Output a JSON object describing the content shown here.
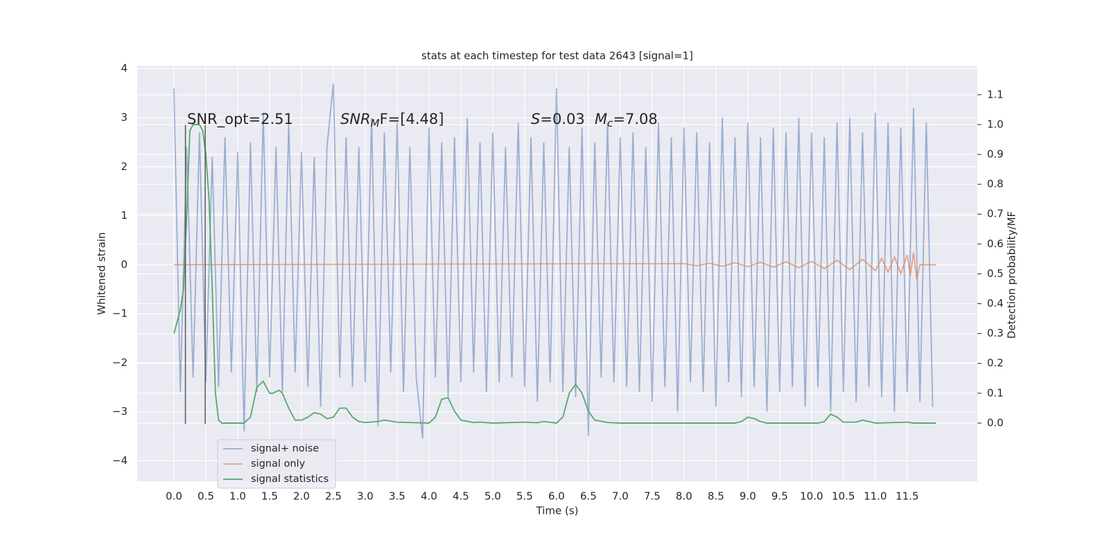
{
  "chart_data": {
    "type": "line",
    "title": "stats at each timestep for test data 2643 [signal=1]",
    "xlabel": "Time (s)",
    "ylabel": "Whitened strain",
    "y2label": "Detection probability/MF",
    "xlim": [
      -0.576,
      12.6
    ],
    "ylim": [
      -4.42,
      4.06
    ],
    "y2lim": [
      -0.195,
      1.197
    ],
    "xticks": [
      {
        "value": 0,
        "label": "0.0"
      },
      0.5,
      {
        "value": 1,
        "label": "1.0"
      },
      1.5,
      {
        "value": 2,
        "label": "2.0"
      },
      2.5,
      {
        "value": 3,
        "label": "3.0"
      },
      3.5,
      {
        "value": 4,
        "label": "4.0"
      },
      4.5,
      {
        "value": 5,
        "label": "5.0"
      },
      5.5,
      {
        "value": 6,
        "label": "6.0"
      },
      6.5,
      {
        "value": 7,
        "label": "7.0"
      },
      7.5,
      {
        "value": 8,
        "label": "8.0"
      },
      8.5,
      {
        "value": 9,
        "label": "9.0"
      },
      9.5,
      {
        "value": 10,
        "label": "10.0"
      },
      10.5,
      {
        "value": 11,
        "label": "11.0"
      },
      11.5
    ],
    "yticks": [
      {
        "value": -4,
        "label": "−4"
      },
      {
        "value": -3,
        "label": "−3"
      },
      {
        "value": -2,
        "label": "−2"
      },
      {
        "value": -1,
        "label": "−1"
      },
      0,
      1,
      2,
      3,
      4
    ],
    "y2ticks": [
      {
        "value": 0,
        "label": "0.0"
      },
      0.1,
      0.2,
      0.3,
      0.4,
      0.5,
      0.6,
      0.7,
      0.8,
      0.9,
      {
        "value": 1,
        "label": "1.0"
      },
      1.1
    ],
    "grid": true,
    "legend": "lower left",
    "series": [
      {
        "name": "signal+ noise",
        "color": "#4c72b0",
        "opacity": 0.5,
        "x": [
          0,
          0.1,
          0.2,
          0.3,
          0.4,
          0.5,
          0.6,
          0.7,
          0.8,
          0.9,
          1,
          1.1,
          1.2,
          1.3,
          1.4,
          1.5,
          1.6,
          1.7,
          1.8,
          1.9,
          2,
          2.1,
          2.2,
          2.3,
          2.4,
          2.5,
          2.6,
          2.7,
          2.8,
          2.9,
          3,
          3.1,
          3.2,
          3.3,
          3.4,
          3.5,
          3.6,
          3.7,
          3.8,
          3.9,
          4,
          4.1,
          4.2,
          4.3,
          4.4,
          4.5,
          4.6,
          4.7,
          4.8,
          4.9,
          5,
          5.1,
          5.2,
          5.3,
          5.4,
          5.5,
          5.6,
          5.7,
          5.8,
          5.9,
          6,
          6.1,
          6.2,
          6.3,
          6.4,
          6.5,
          6.6,
          6.7,
          6.8,
          6.9,
          7,
          7.1,
          7.2,
          7.3,
          7.4,
          7.5,
          7.6,
          7.7,
          7.8,
          7.9,
          8,
          8.1,
          8.2,
          8.3,
          8.4,
          8.5,
          8.6,
          8.7,
          8.8,
          8.9,
          9,
          9.1,
          9.2,
          9.3,
          9.4,
          9.5,
          9.6,
          9.7,
          9.8,
          9.9,
          10,
          10.1,
          10.2,
          10.3,
          10.4,
          10.5,
          10.6,
          10.7,
          10.8,
          10.9,
          11,
          11.1,
          11.2,
          11.3,
          11.4,
          11.5,
          11.6,
          11.7,
          11.8,
          11.9
        ],
        "values": [
          3.6,
          -2.6,
          2.4,
          -2.3,
          2.7,
          -2.4,
          2.2,
          -2.5,
          2.6,
          -2.2,
          2.3,
          -3.4,
          2.5,
          -2.6,
          3.1,
          -2.3,
          2.4,
          -2.6,
          2.9,
          -2.2,
          2.3,
          -2.5,
          2.2,
          -2.9,
          2.4,
          3.7,
          -2.3,
          2.6,
          -2.5,
          2.4,
          -2.4,
          3.0,
          -3.3,
          2.7,
          -2.2,
          2.9,
          -2.6,
          2.4,
          -2.3,
          -3.55,
          2.8,
          -2.3,
          2.5,
          -2.7,
          2.6,
          -2.4,
          3.0,
          -2.2,
          2.5,
          -2.6,
          2.7,
          -2.4,
          2.4,
          -2.3,
          2.9,
          -2.5,
          2.6,
          -2.8,
          2.5,
          -2.4,
          3.6,
          -2.6,
          2.4,
          -2.7,
          2.8,
          -3.5,
          2.5,
          -2.3,
          2.9,
          -2.4,
          2.6,
          -2.5,
          2.7,
          -2.6,
          2.4,
          -2.8,
          2.9,
          -2.5,
          2.6,
          -3.0,
          2.8,
          -2.4,
          2.7,
          -2.6,
          2.5,
          -2.9,
          3.0,
          -2.4,
          2.6,
          -2.7,
          2.9,
          -2.5,
          2.6,
          -3.0,
          2.8,
          -2.6,
          2.7,
          -2.5,
          3.0,
          -2.9,
          2.7,
          -2.5,
          2.6,
          -3.0,
          2.9,
          -2.6,
          3.0,
          -2.8,
          2.7,
          -2.5,
          3.1,
          -2.7,
          2.9,
          -3.0,
          2.8,
          -2.6,
          3.2,
          -2.8,
          2.9,
          -2.9
        ]
      },
      {
        "name": "signal only",
        "color": "#dd8452",
        "opacity": 0.7,
        "x": [
          0,
          8.0,
          8.2,
          8.4,
          8.6,
          8.8,
          9.0,
          9.2,
          9.4,
          9.6,
          9.8,
          10.0,
          10.2,
          10.4,
          10.6,
          10.8,
          11.0,
          11.1,
          11.2,
          11.3,
          11.4,
          11.5,
          11.55,
          11.6,
          11.65,
          11.7,
          11.95
        ],
        "values": [
          0,
          0.02,
          -0.02,
          0.03,
          -0.03,
          0.04,
          -0.04,
          0.05,
          -0.05,
          0.06,
          -0.06,
          0.07,
          -0.08,
          0.09,
          -0.1,
          0.11,
          -0.12,
          0.13,
          -0.15,
          0.16,
          -0.18,
          0.2,
          -0.22,
          0.25,
          -0.3,
          0,
          0
        ]
      },
      {
        "name": "signal statistics",
        "color": "#55a868",
        "opacity": 1,
        "axis": "y2",
        "x": [
          0,
          0.1,
          0.15,
          0.2,
          0.25,
          0.3,
          0.35,
          0.4,
          0.45,
          0.5,
          0.55,
          0.6,
          0.65,
          0.7,
          0.75,
          1.1,
          1.2,
          1.3,
          1.4,
          1.5,
          1.55,
          1.65,
          1.7,
          1.8,
          1.9,
          2.0,
          2.1,
          2.2,
          2.3,
          2.4,
          2.5,
          2.6,
          2.7,
          2.8,
          2.9,
          3.0,
          3.2,
          3.3,
          3.5,
          4.0,
          4.1,
          4.2,
          4.3,
          4.4,
          4.5,
          4.7,
          4.8,
          5.0,
          5.5,
          5.7,
          5.8,
          6.0,
          6.1,
          6.2,
          6.3,
          6.4,
          6.5,
          6.6,
          6.8,
          7.0,
          8.8,
          8.9,
          9.0,
          9.1,
          9.2,
          9.3,
          10.1,
          10.2,
          10.3,
          10.4,
          10.5,
          10.7,
          10.8,
          10.9,
          11.0,
          11.5,
          11.6,
          11.95
        ],
        "values": [
          0.3,
          0.38,
          0.45,
          0.7,
          0.98,
          1.0,
          1.0,
          1.0,
          0.98,
          0.9,
          0.75,
          0.45,
          0.1,
          0.01,
          0.0,
          0.0,
          0.02,
          0.12,
          0.14,
          0.1,
          0.1,
          0.11,
          0.1,
          0.05,
          0.01,
          0.01,
          0.02,
          0.035,
          0.03,
          0.015,
          0.02,
          0.05,
          0.05,
          0.02,
          0.005,
          0.002,
          0.005,
          0.01,
          0.003,
          0.0,
          0.02,
          0.08,
          0.085,
          0.04,
          0.01,
          0.002,
          0.003,
          0.0,
          0.003,
          0.001,
          0.005,
          0.0,
          0.02,
          0.1,
          0.13,
          0.1,
          0.04,
          0.01,
          0.002,
          0.0,
          0.0,
          0.005,
          0.02,
          0.015,
          0.005,
          0.0,
          0.0,
          0.005,
          0.03,
          0.02,
          0.003,
          0.003,
          0.01,
          0.005,
          0.0,
          0.003,
          0.0,
          0.0
        ]
      }
    ],
    "vlines": {
      "x": [
        0.18,
        0.49
      ],
      "ymin": -3.25,
      "ymax": 2.85,
      "color": "#555555"
    },
    "annotations": [
      {
        "text": "SNR_opt=2.51"
      },
      {
        "text": "SNR",
        "sub": "M",
        "tail": "F=[4.48]",
        "italic": true
      },
      {
        "text": "S",
        "tail": "=0.03",
        "italic": true
      },
      {
        "text": "M",
        "sub": "c",
        "tail": "=7.08",
        "italic": true
      }
    ]
  }
}
